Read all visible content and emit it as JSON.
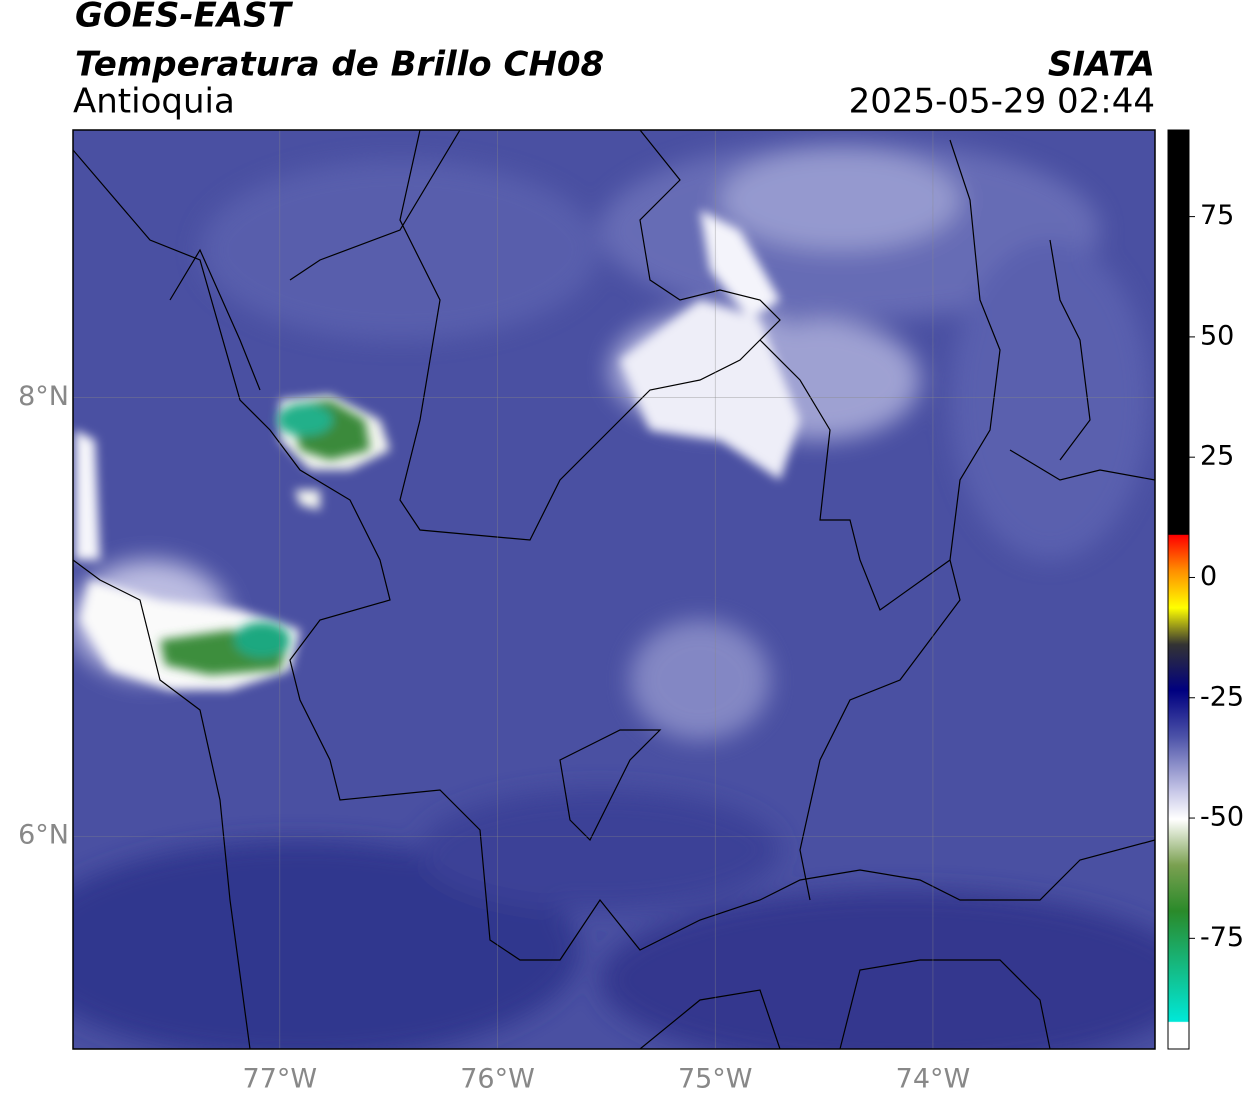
{
  "title": "GOES-EAST",
  "subtitle": "Temperatura de Brillo CH08",
  "region": "Antioquia",
  "source": "SIATA",
  "datetime": "2025-05-29 02:44",
  "map": {
    "xlim": [
      -77.95,
      -72.98
    ],
    "ylim": [
      5.03,
      9.22
    ],
    "xticks": [
      {
        "value": -77,
        "label": "77°W"
      },
      {
        "value": -76,
        "label": "76°W"
      },
      {
        "value": -75,
        "label": "75°W"
      },
      {
        "value": -74,
        "label": "74°W"
      }
    ],
    "yticks": [
      {
        "value": 8,
        "label": "8°N"
      },
      {
        "value": 6,
        "label": "6°N"
      }
    ]
  },
  "colorbar": {
    "lim": [
      -98,
      93
    ],
    "ticks": [
      75,
      50,
      25,
      0,
      -25,
      -50,
      -75
    ]
  }
}
